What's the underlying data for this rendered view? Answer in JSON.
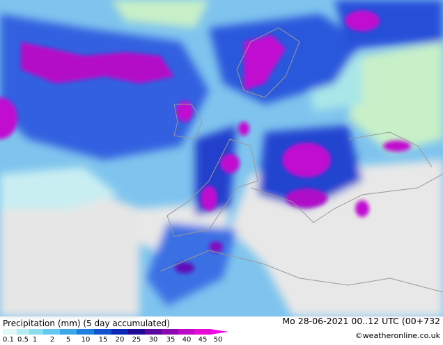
{
  "header": {
    "title": "Precipitation (mm) (5 day accumulated)",
    "run": "Mo 28-06-2021 00..12 UTC (00+732",
    "credit": "©weatheronline.co.uk"
  },
  "legend": {
    "labels": [
      "0.1",
      "0.5",
      "1",
      "2",
      "5",
      "10",
      "15",
      "20",
      "25",
      "30",
      "35",
      "40",
      "45",
      "50"
    ]
  }
}
